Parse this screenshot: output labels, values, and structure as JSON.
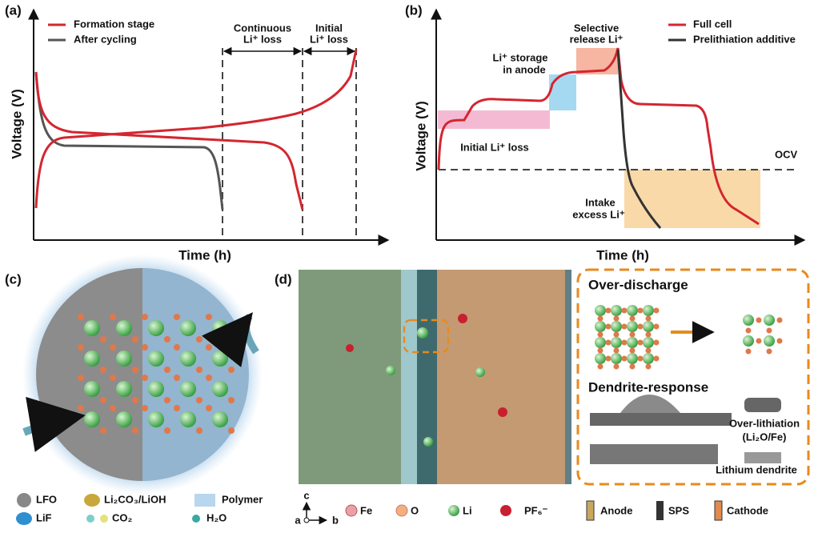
{
  "panel_a": {
    "label": "(a)",
    "x_axis": "Time (h)",
    "y_axis": "Voltage (V)",
    "legend": [
      "Formation stage",
      "After cycling"
    ],
    "annotations": [
      [
        "Continuous",
        "Li⁺ loss"
      ],
      [
        "Initial",
        "Li⁺ loss"
      ]
    ]
  },
  "panel_b": {
    "label": "(b)",
    "x_axis": "Time (h)",
    "y_axis": "Voltage (V)",
    "legend": [
      "Full cell",
      "Prelithiation additive"
    ],
    "annotations": [
      [
        "Selective",
        "release Li⁺"
      ],
      [
        "Li⁺ storage",
        "in anode"
      ],
      [
        "Initial Li⁺ loss"
      ],
      [
        "OCV"
      ],
      [
        "Intake",
        "excess Li⁺"
      ]
    ]
  },
  "panel_c": {
    "label": "(c)",
    "legend": [
      "LFO",
      "Li₂CO₃/LiOH",
      "Polymer",
      "LiF",
      "CO₂",
      "H₂O"
    ]
  },
  "panel_d": {
    "label": "(d)",
    "axes": [
      "c",
      "a",
      "b"
    ],
    "legend": [
      "Fe",
      "O",
      "Li",
      "PF₆⁻",
      "Anode",
      "SPS",
      "Cathode"
    ],
    "box": {
      "over_discharge": "Over-discharge",
      "dendrite_response": "Dendrite-response",
      "over_lithiation": [
        "Over-lithiation",
        "(Li₂O/Fe)"
      ],
      "lithium_dendrite": "Lithium dendrite"
    }
  }
}
